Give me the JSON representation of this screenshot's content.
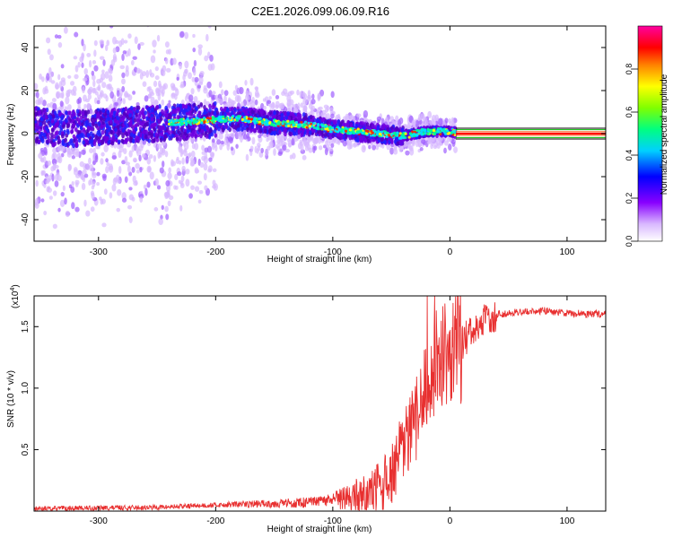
{
  "title": "C2E1.2026.099.06.09.R16",
  "chart_data": [
    {
      "type": "heatmap",
      "name": "spectrogram",
      "xlabel": "Height of straight line (km)",
      "ylabel": "Frequency (Hz)",
      "xlim": [
        -355,
        133
      ],
      "ylim": [
        -50,
        50
      ],
      "xticks": [
        -300,
        -200,
        -100,
        0,
        100
      ],
      "yticks": [
        -40,
        -20,
        0,
        20,
        40
      ],
      "ridge": {
        "x": [
          -355,
          -330,
          -300,
          -270,
          -240,
          -210,
          -180,
          -150,
          -120,
          -100,
          -80,
          -60,
          -40,
          -20,
          0,
          10,
          133
        ],
        "freq": [
          4,
          2,
          3,
          4,
          5,
          6,
          7,
          5,
          4,
          2,
          1,
          0,
          -1,
          1,
          1,
          0,
          0
        ]
      },
      "flat_start_x": 5,
      "colorbar": {
        "label": "Normalized spectral amplitude",
        "ticks": [
          0.0,
          0.2,
          0.4,
          0.6,
          0.8
        ],
        "range": [
          0,
          1
        ]
      }
    },
    {
      "type": "line",
      "name": "snr",
      "xlabel": "Height of straight line (km)",
      "ylabel": "SNR (10 * v/v)",
      "multiplier": "(x10",
      "multiplier_exp": "4",
      "multiplier_close": ")",
      "xlim": [
        -355,
        133
      ],
      "ylim": [
        0,
        1.75
      ],
      "xticks": [
        -300,
        -200,
        -100,
        0,
        100
      ],
      "yticks": [
        0.5,
        1.0,
        1.5
      ],
      "series": [
        {
          "name": "SNR",
          "color": "#e83030",
          "x": [
            -355,
            -250,
            -200,
            -160,
            -120,
            -100,
            -80,
            -60,
            -50,
            -40,
            -30,
            -20,
            -15,
            -10,
            0,
            10,
            20,
            30,
            40,
            60,
            80,
            100,
            133
          ],
          "y": [
            0.02,
            0.03,
            0.05,
            0.06,
            0.07,
            0.09,
            0.12,
            0.18,
            0.3,
            0.5,
            0.7,
            1.0,
            1.15,
            1.25,
            1.3,
            1.38,
            1.45,
            1.55,
            1.6,
            1.62,
            1.63,
            1.61,
            1.6
          ]
        }
      ]
    }
  ],
  "colors": {
    "line": "#e83030",
    "axis": "#000000"
  }
}
